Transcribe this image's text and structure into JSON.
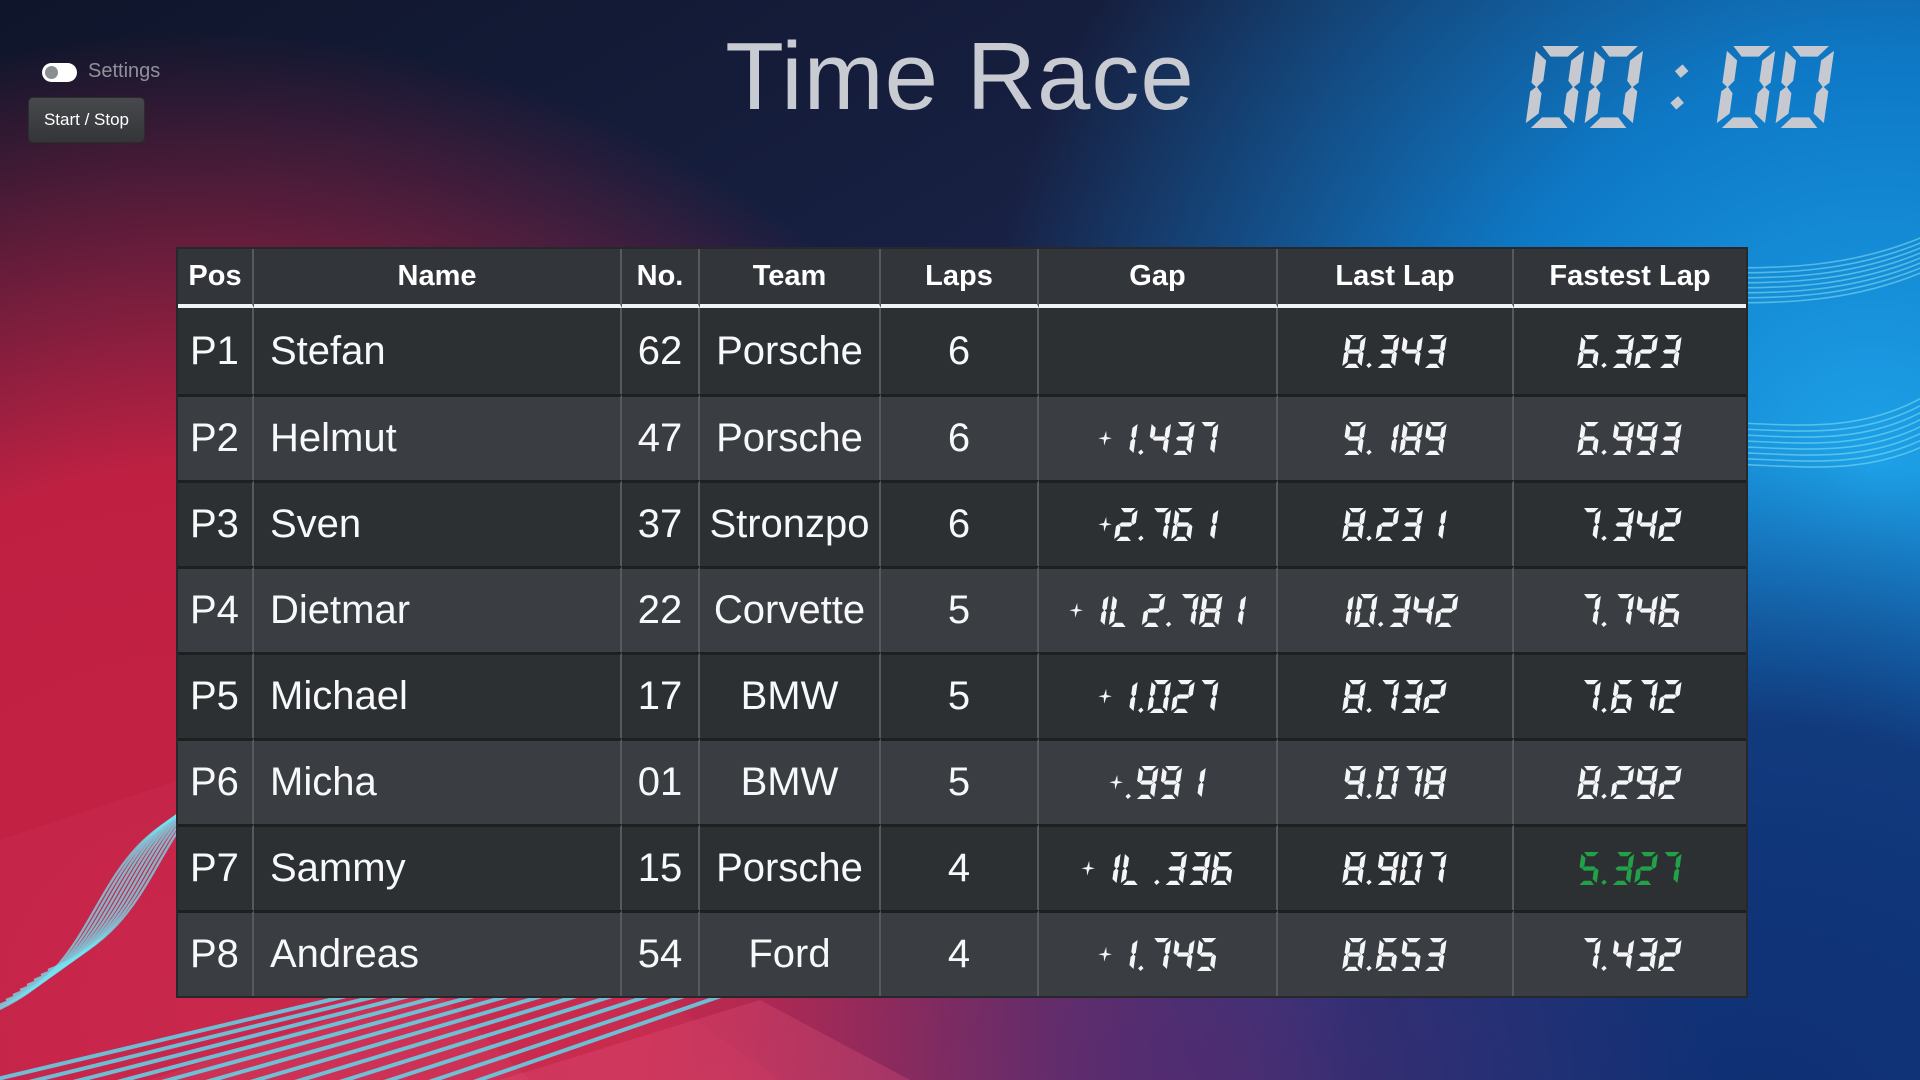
{
  "controls": {
    "settings_label": "Settings",
    "settings_toggle_state": "off",
    "start_stop_label": "Start / Stop"
  },
  "header": {
    "title": "Time Race",
    "clock": "00 : 00"
  },
  "table": {
    "columns": [
      "Pos",
      "Name",
      "No.",
      "Team",
      "Laps",
      "Gap",
      "Last Lap",
      "Fastest Lap"
    ],
    "rows": [
      {
        "pos": "P1",
        "name": "Stefan",
        "no": "62",
        "team": "Porsche",
        "laps": "6",
        "gap": "",
        "last_lap": "8.343",
        "fastest_lap": "6.323",
        "fastest_lap_best": false
      },
      {
        "pos": "P2",
        "name": "Helmut",
        "no": "47",
        "team": "Porsche",
        "laps": "6",
        "gap": "+1.437",
        "last_lap": "9.189",
        "fastest_lap": "6.993",
        "fastest_lap_best": false
      },
      {
        "pos": "P3",
        "name": "Sven",
        "no": "37",
        "team": "Stronzpo",
        "laps": "6",
        "gap": "+2.761",
        "last_lap": "8.231",
        "fastest_lap": "7.342",
        "fastest_lap_best": false
      },
      {
        "pos": "P4",
        "name": "Dietmar",
        "no": "22",
        "team": "Corvette",
        "laps": "5",
        "gap": "+1L 2.781",
        "last_lap": "10.342",
        "fastest_lap": "7.746",
        "fastest_lap_best": false
      },
      {
        "pos": "P5",
        "name": "Michael",
        "no": "17",
        "team": "BMW",
        "laps": "5",
        "gap": "+1.027",
        "last_lap": "8.732",
        "fastest_lap": "7.672",
        "fastest_lap_best": false
      },
      {
        "pos": "P6",
        "name": "Micha",
        "no": "01",
        "team": "BMW",
        "laps": "5",
        "gap": "+.991",
        "last_lap": "9.078",
        "fastest_lap": "8.292",
        "fastest_lap_best": false
      },
      {
        "pos": "P7",
        "name": "Sammy",
        "no": "15",
        "team": "Porsche",
        "laps": "4",
        "gap": "+1L .336",
        "last_lap": "8.907",
        "fastest_lap": "5.327",
        "fastest_lap_best": true
      },
      {
        "pos": "P8",
        "name": "Andreas",
        "no": "54",
        "team": "Ford",
        "laps": "4",
        "gap": "+1.745",
        "last_lap": "8.653",
        "fastest_lap": "7.432",
        "fastest_lap_best": false
      }
    ]
  },
  "colors": {
    "lap_time": "#f4f5f7",
    "best_lap": "#21a148",
    "clock": "#c6c9cf"
  }
}
